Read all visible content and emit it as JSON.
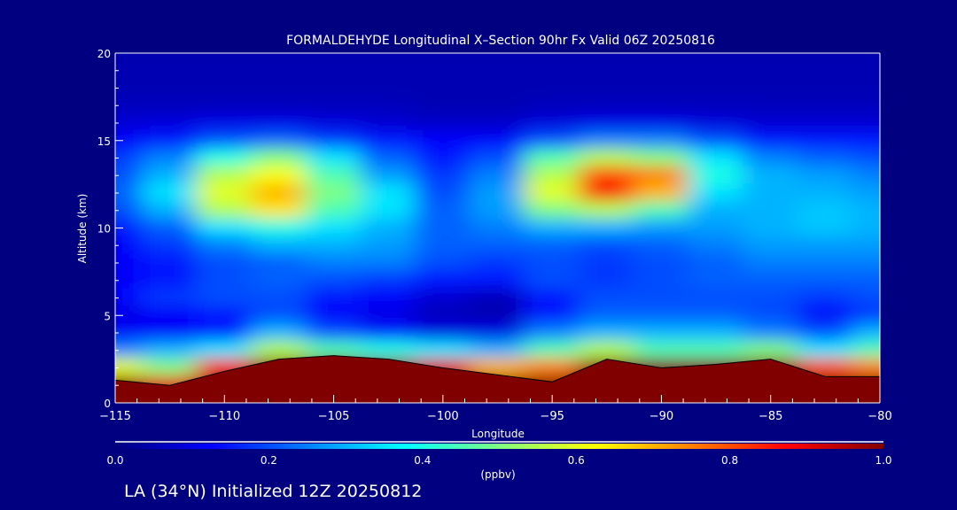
{
  "chart_data": {
    "type": "heatmap",
    "title": "FORMALDEHYDE Longitudinal X–Section 90hr  Fx Valid 06Z 20250816",
    "xlabel": "Longitude",
    "ylabel": "Altitude (km)",
    "xlim": [
      -115,
      -80
    ],
    "ylim": [
      0,
      20
    ],
    "x_ticks": [
      "−115",
      "−110",
      "−105",
      "−100",
      "−95",
      "−90",
      "−85",
      "−80"
    ],
    "x_tick_values": [
      -115,
      -110,
      -105,
      -100,
      -95,
      -90,
      -85,
      -80
    ],
    "y_ticks": [
      "0",
      "5",
      "10",
      "15",
      "20"
    ],
    "y_tick_values": [
      0,
      5,
      10,
      15,
      20
    ],
    "colorbar": {
      "label": "(ppbv)",
      "ticks": [
        "0.0",
        "0.2",
        "0.4",
        "0.6",
        "0.8",
        "1.0"
      ],
      "range": [
        0,
        1
      ]
    },
    "x": [
      -115,
      -112.5,
      -110,
      -107.5,
      -105,
      -102.5,
      -100,
      -97.5,
      -95,
      -92.5,
      -90,
      -87.5,
      -85,
      -82.5,
      -80
    ],
    "y": [
      20,
      19,
      18,
      17,
      16,
      15,
      14,
      13,
      12,
      11,
      10,
      9,
      8,
      7,
      6,
      5,
      4,
      3,
      2,
      1,
      0
    ],
    "values": [
      [
        0.05,
        0.05,
        0.05,
        0.05,
        0.05,
        0.05,
        0.05,
        0.05,
        0.05,
        0.05,
        0.05,
        0.05,
        0.05,
        0.05,
        0.05
      ],
      [
        0.05,
        0.05,
        0.05,
        0.05,
        0.05,
        0.05,
        0.05,
        0.05,
        0.05,
        0.05,
        0.05,
        0.05,
        0.05,
        0.05,
        0.05
      ],
      [
        0.05,
        0.05,
        0.05,
        0.05,
        0.05,
        0.05,
        0.05,
        0.05,
        0.05,
        0.05,
        0.05,
        0.05,
        0.05,
        0.05,
        0.05
      ],
      [
        0.06,
        0.06,
        0.06,
        0.06,
        0.06,
        0.06,
        0.05,
        0.05,
        0.06,
        0.06,
        0.06,
        0.06,
        0.06,
        0.06,
        0.06
      ],
      [
        0.08,
        0.09,
        0.1,
        0.1,
        0.09,
        0.08,
        0.07,
        0.07,
        0.09,
        0.1,
        0.1,
        0.09,
        0.08,
        0.08,
        0.08
      ],
      [
        0.12,
        0.15,
        0.2,
        0.22,
        0.18,
        0.15,
        0.12,
        0.12,
        0.2,
        0.25,
        0.25,
        0.2,
        0.15,
        0.15,
        0.15
      ],
      [
        0.18,
        0.25,
        0.4,
        0.5,
        0.35,
        0.22,
        0.15,
        0.2,
        0.45,
        0.55,
        0.5,
        0.35,
        0.25,
        0.22,
        0.2
      ],
      [
        0.2,
        0.3,
        0.55,
        0.62,
        0.45,
        0.28,
        0.18,
        0.25,
        0.55,
        0.8,
        0.75,
        0.4,
        0.3,
        0.28,
        0.25
      ],
      [
        0.22,
        0.35,
        0.6,
        0.7,
        0.5,
        0.35,
        0.2,
        0.28,
        0.6,
        0.88,
        0.7,
        0.35,
        0.3,
        0.3,
        0.28
      ],
      [
        0.2,
        0.3,
        0.55,
        0.65,
        0.45,
        0.35,
        0.22,
        0.28,
        0.5,
        0.55,
        0.45,
        0.3,
        0.3,
        0.32,
        0.3
      ],
      [
        0.15,
        0.22,
        0.35,
        0.4,
        0.35,
        0.3,
        0.22,
        0.25,
        0.3,
        0.3,
        0.28,
        0.28,
        0.3,
        0.32,
        0.3
      ],
      [
        0.12,
        0.18,
        0.25,
        0.3,
        0.3,
        0.28,
        0.22,
        0.22,
        0.22,
        0.2,
        0.22,
        0.25,
        0.28,
        0.28,
        0.28
      ],
      [
        0.12,
        0.15,
        0.2,
        0.22,
        0.25,
        0.25,
        0.2,
        0.18,
        0.2,
        0.18,
        0.2,
        0.22,
        0.25,
        0.25,
        0.25
      ],
      [
        0.12,
        0.15,
        0.2,
        0.22,
        0.2,
        0.18,
        0.15,
        0.15,
        0.2,
        0.18,
        0.2,
        0.22,
        0.22,
        0.22,
        0.22
      ],
      [
        0.12,
        0.18,
        0.2,
        0.2,
        0.15,
        0.12,
        0.08,
        0.06,
        0.15,
        0.2,
        0.2,
        0.2,
        0.2,
        0.18,
        0.2
      ],
      [
        0.1,
        0.12,
        0.15,
        0.2,
        0.12,
        0.1,
        0.06,
        0.05,
        0.15,
        0.22,
        0.22,
        0.22,
        0.2,
        0.12,
        0.18
      ],
      [
        0.12,
        0.12,
        0.15,
        0.3,
        0.2,
        0.15,
        0.1,
        0.1,
        0.25,
        0.3,
        0.3,
        0.3,
        0.25,
        0.2,
        0.3
      ],
      [
        0.25,
        0.3,
        0.35,
        0.55,
        0.45,
        0.4,
        0.35,
        0.3,
        0.45,
        0.55,
        0.45,
        0.45,
        0.5,
        0.35,
        0.45
      ],
      [
        0.6,
        0.5,
        0.85,
        1,
        1,
        1,
        0.9,
        0.7,
        0.75,
        1,
        1,
        1,
        1,
        0.8,
        0.75
      ],
      [
        1,
        0.9,
        1,
        1,
        1,
        1,
        1,
        1,
        1,
        1,
        1,
        1,
        1,
        1,
        1
      ],
      [
        1,
        1,
        1,
        1,
        1,
        1,
        1,
        1,
        1,
        1,
        1,
        1,
        1,
        1,
        1
      ]
    ],
    "terrain_height_km": [
      1.3,
      1.0,
      1.8,
      2.5,
      2.7,
      2.5,
      2.0,
      1.6,
      1.2,
      2.5,
      2.0,
      2.2,
      2.5,
      1.5,
      1.5
    ],
    "grid": false
  },
  "footer": {
    "location_text": "LA (34°N) Initialized 12Z 20250812"
  },
  "colors": {
    "background": "#000080",
    "colormap": [
      "#00007f",
      "#0000ff",
      "#00ffff",
      "#ffff00",
      "#ff0000",
      "#800000"
    ]
  }
}
